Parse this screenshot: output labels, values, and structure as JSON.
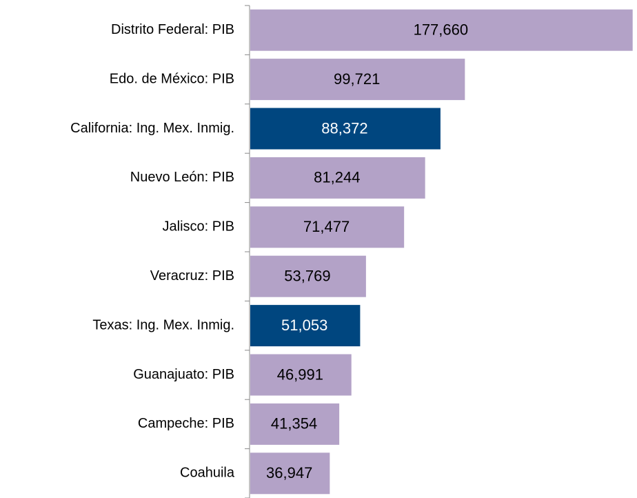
{
  "chart_data": {
    "type": "barh",
    "categories": [
      "Distrito Federal: PIB",
      "Edo. de México: PIB",
      "California: Ing. Mex. Inmig.",
      "Nuevo León: PIB",
      "Jalisco: PIB",
      "Veracruz: PIB",
      "Texas: Ing. Mex. Inmig.",
      "Guanajuato: PIB",
      "Campeche: PIB",
      "Coahuila"
    ],
    "values": [
      177660,
      99721,
      88372,
      81244,
      71477,
      53769,
      51053,
      46991,
      41354,
      36947
    ],
    "value_labels": [
      "177,660",
      "99,721",
      "88,372",
      "81,244",
      "71,477",
      "53,769",
      "51,053",
      "46,991",
      "41,354",
      "36,947"
    ],
    "colors": [
      "#b3a2c7",
      "#b3a2c7",
      "#00467f",
      "#b3a2c7",
      "#b3a2c7",
      "#b3a2c7",
      "#00467f",
      "#b3a2c7",
      "#b3a2c7",
      "#b3a2c7"
    ],
    "xlim": [
      0,
      180000
    ]
  }
}
